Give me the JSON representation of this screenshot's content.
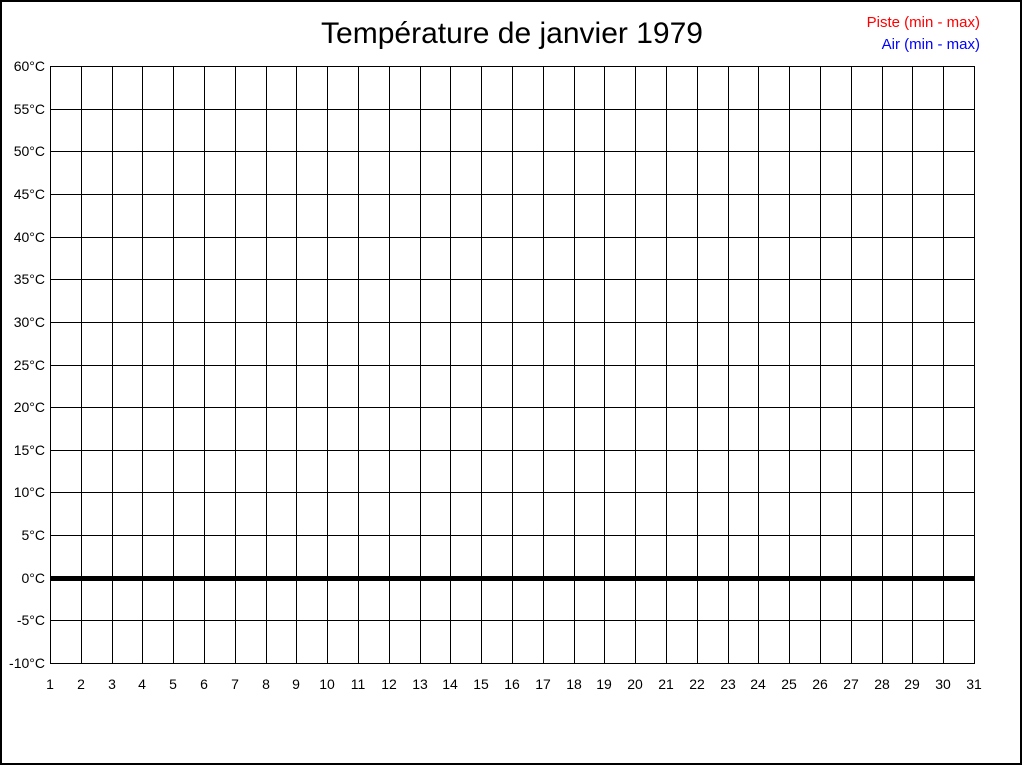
{
  "window": {
    "background": "#ffffff",
    "border_color": "#000000"
  },
  "header": {
    "title": "Température de janvier 1979"
  },
  "legend": {
    "position": "top-right",
    "items": [
      {
        "label": "Piste (min - max)",
        "color": "#ff0000"
      },
      {
        "label": "Air (min - max)",
        "color": "#0000ff"
      }
    ]
  },
  "chart_data": {
    "type": "bar",
    "title": "Température de janvier 1979",
    "categories": [
      1,
      2,
      3,
      4,
      5,
      6,
      7,
      8,
      9,
      10,
      11,
      12,
      13,
      14,
      15,
      16,
      17,
      18,
      19,
      20,
      21,
      22,
      23,
      24,
      25,
      26,
      27,
      28,
      29,
      30,
      31
    ],
    "series": [
      {
        "name": "Piste (min - max)",
        "color": "#ff0000",
        "values": []
      },
      {
        "name": "Air (min - max)",
        "color": "#0000ff",
        "values": []
      }
    ],
    "note": "empty grid — no temperature bars are drawn for any day",
    "ylim": [
      -10,
      60
    ],
    "y_tick_step": 5,
    "y_unit": "°C",
    "y_tick_labels": [
      "60°C",
      "55°C",
      "50°C",
      "45°C",
      "40°C",
      "35°C",
      "30°C",
      "25°C",
      "20°C",
      "15°C",
      "10°C",
      "5°C",
      "0°C",
      "-5°C",
      "-10°C"
    ],
    "x_tick_labels": [
      "1",
      "2",
      "3",
      "4",
      "5",
      "6",
      "7",
      "8",
      "9",
      "10",
      "11",
      "12",
      "13",
      "14",
      "15",
      "16",
      "17",
      "18",
      "19",
      "20",
      "21",
      "22",
      "23",
      "24",
      "25",
      "26",
      "27",
      "28",
      "29",
      "30",
      "31"
    ],
    "grid": true,
    "grid_color": "#000000",
    "legend_position": "top-right",
    "zero_line": {
      "value": 0,
      "color": "#000000",
      "thickness_px": 5
    }
  }
}
